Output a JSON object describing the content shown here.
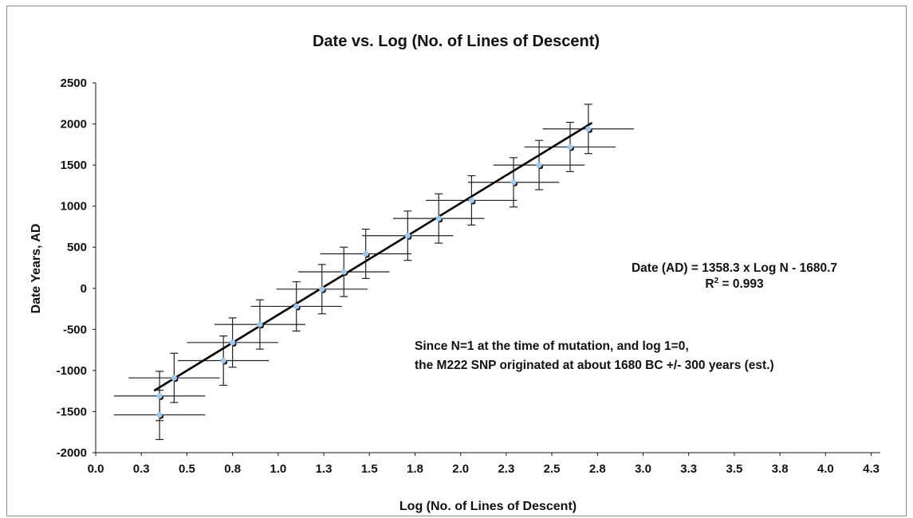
{
  "chart_data": {
    "type": "scatter",
    "title": "Date vs. Log (No. of Lines of Descent)",
    "xlabel": "Log (No. of Lines of Descent)",
    "ylabel": "Date Years, AD",
    "xlim": [
      0,
      4.3
    ],
    "ylim": [
      -2000,
      2500
    ],
    "x_ticks": [
      "0.0",
      "0.3",
      "0.5",
      "0.8",
      "1.0",
      "1.3",
      "1.5",
      "1.8",
      "2.0",
      "2.3",
      "2.5",
      "2.8",
      "3.0",
      "3.3",
      "3.5",
      "3.8",
      "4.0",
      "4.3"
    ],
    "y_ticks": [
      2500,
      2000,
      1500,
      1000,
      500,
      0,
      -500,
      -1000,
      -1500,
      -2000
    ],
    "grid": false,
    "x_error": 0.25,
    "y_error": 300,
    "points": [
      {
        "x": 0.35,
        "y": -1540
      },
      {
        "x": 0.35,
        "y": -1310
      },
      {
        "x": 0.43,
        "y": -1090
      },
      {
        "x": 0.7,
        "y": -880
      },
      {
        "x": 0.75,
        "y": -660
      },
      {
        "x": 0.9,
        "y": -440
      },
      {
        "x": 1.1,
        "y": -220
      },
      {
        "x": 1.24,
        "y": -10
      },
      {
        "x": 1.36,
        "y": 200
      },
      {
        "x": 1.48,
        "y": 420
      },
      {
        "x": 1.71,
        "y": 640
      },
      {
        "x": 1.88,
        "y": 850
      },
      {
        "x": 2.06,
        "y": 1070
      },
      {
        "x": 2.29,
        "y": 1290
      },
      {
        "x": 2.43,
        "y": 1500
      },
      {
        "x": 2.6,
        "y": 1720
      },
      {
        "x": 2.7,
        "y": 1940
      }
    ],
    "trendline": {
      "slope": 1358.3,
      "intercept": -1680.7,
      "x_range": [
        0.32,
        2.72
      ]
    },
    "equation_text": "Date (AD) = 1358.3 x Log N - 1680.7",
    "r2_prefix": "R",
    "r2_sup": "2",
    "r2_value": " = 0.993",
    "note_line1": "Since N=1 at the time of mutation, and log 1=0,",
    "note_line2": "the M222 SNP originated at about 1680 BC +/- 300 years (est.)",
    "colors": {
      "point_fill": "#9cc9f0",
      "point_shadow": "#111111",
      "line": "#000000",
      "error_bar": "#222222"
    }
  }
}
